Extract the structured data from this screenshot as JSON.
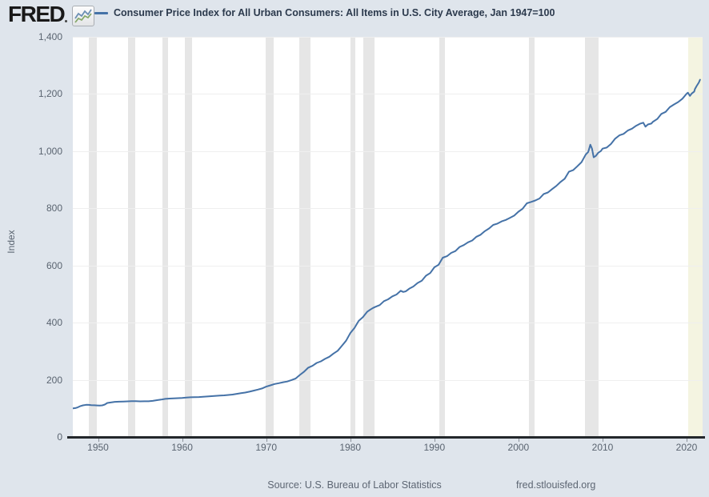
{
  "header": {
    "logo_text": "FRED",
    "legend_label": "Consumer Price Index for All Urban Consumers: All Items in U.S. City Average, Jan 1947=100"
  },
  "footer": {
    "source": "Source: U.S. Bureau of Labor Statistics",
    "site": "fred.stlouisfed.org"
  },
  "colors": {
    "page_background": "#dfe5ec",
    "plot_background": "#ffffff",
    "line": "#4572a7",
    "recession_band": "#e6e6e6",
    "undated_recession_band": "#f4f4e1",
    "gridline": "#efefef",
    "axis_line": "#23272b",
    "tick_text": "#5a6470"
  },
  "chart_data": {
    "type": "line",
    "title": "Consumer Price Index for All Urban Consumers: All Items in U.S. City Average, Jan 1947=100",
    "xlabel": "",
    "ylabel": "Index",
    "xlim": [
      1947,
      2021.9
    ],
    "ylim": [
      0,
      1400
    ],
    "grid": "horizontal",
    "legend_position": "top",
    "y_ticks": [
      {
        "value": 0,
        "label": "0"
      },
      {
        "value": 200,
        "label": "200"
      },
      {
        "value": 400,
        "label": "400"
      },
      {
        "value": 600,
        "label": "600"
      },
      {
        "value": 800,
        "label": "800"
      },
      {
        "value": 1000,
        "label": "1,000"
      },
      {
        "value": 1200,
        "label": "1,200"
      },
      {
        "value": 1400,
        "label": "1,400"
      }
    ],
    "x_ticks": [
      {
        "value": 1950,
        "label": "1950"
      },
      {
        "value": 1960,
        "label": "1960"
      },
      {
        "value": 1970,
        "label": "1970"
      },
      {
        "value": 1980,
        "label": "1980"
      },
      {
        "value": 1990,
        "label": "1990"
      },
      {
        "value": 2000,
        "label": "2000"
      },
      {
        "value": 2010,
        "label": "2010"
      },
      {
        "value": 2020,
        "label": "2020"
      }
    ],
    "recession_bands": [
      [
        1948.92,
        1949.83
      ],
      [
        1953.58,
        1954.42
      ],
      [
        1957.67,
        1958.33
      ],
      [
        1960.33,
        1961.17
      ],
      [
        1969.92,
        1970.92
      ],
      [
        1973.92,
        1975.25
      ],
      [
        1980.05,
        1980.58
      ],
      [
        1981.58,
        1982.92
      ],
      [
        1990.58,
        1991.25
      ],
      [
        2001.25,
        2001.92
      ],
      [
        2007.92,
        2009.5
      ]
    ],
    "undated_recession_band": [
      2020.17,
      2021.9
    ],
    "series": [
      {
        "name": "Consumer Price Index for All Urban Consumers: All Items in U.S. City Average, Jan 1947=100",
        "color": "#4572a7",
        "points": [
          [
            1947.0,
            100
          ],
          [
            1947.3,
            101
          ],
          [
            1947.6,
            104
          ],
          [
            1947.9,
            108
          ],
          [
            1948.2,
            110.5
          ],
          [
            1948.6,
            112.5
          ],
          [
            1948.9,
            112.3
          ],
          [
            1949.2,
            111.5
          ],
          [
            1949.6,
            111.0
          ],
          [
            1949.9,
            110.3
          ],
          [
            1950.2,
            109.8
          ],
          [
            1950.5,
            110.5
          ],
          [
            1950.8,
            113.5
          ],
          [
            1951.1,
            119.0
          ],
          [
            1951.5,
            120.8
          ],
          [
            1952.0,
            122.8
          ],
          [
            1952.5,
            123.5
          ],
          [
            1953.0,
            124.0
          ],
          [
            1953.5,
            124.5
          ],
          [
            1954.0,
            125.4
          ],
          [
            1954.5,
            125.2
          ],
          [
            1955.0,
            124.6
          ],
          [
            1955.5,
            124.8
          ],
          [
            1956.0,
            124.9
          ],
          [
            1956.5,
            126.3
          ],
          [
            1957.0,
            128.8
          ],
          [
            1957.5,
            130.7
          ],
          [
            1958.0,
            133.3
          ],
          [
            1958.5,
            134.5
          ],
          [
            1959.0,
            135.0
          ],
          [
            1959.5,
            135.9
          ],
          [
            1960.0,
            136.7
          ],
          [
            1960.5,
            138.0
          ],
          [
            1961.0,
            138.9
          ],
          [
            1961.5,
            139.4
          ],
          [
            1962.0,
            139.8
          ],
          [
            1962.5,
            140.9
          ],
          [
            1963.0,
            141.7
          ],
          [
            1963.5,
            142.9
          ],
          [
            1964.0,
            144.0
          ],
          [
            1964.5,
            144.9
          ],
          [
            1965.0,
            145.6
          ],
          [
            1965.5,
            147.0
          ],
          [
            1966.0,
            148.4
          ],
          [
            1966.5,
            150.9
          ],
          [
            1967.0,
            153.2
          ],
          [
            1967.5,
            155.4
          ],
          [
            1968.0,
            158.6
          ],
          [
            1968.5,
            162.2
          ],
          [
            1969.0,
            165.7
          ],
          [
            1969.5,
            169.8
          ],
          [
            1970.0,
            176.2
          ],
          [
            1970.5,
            180.5
          ],
          [
            1971.0,
            185.5
          ],
          [
            1971.5,
            188.3
          ],
          [
            1972.0,
            191.5
          ],
          [
            1972.5,
            194.1
          ],
          [
            1973.0,
            199.0
          ],
          [
            1973.5,
            204.3
          ],
          [
            1974.0,
            217.0
          ],
          [
            1974.5,
            228.5
          ],
          [
            1975.0,
            242.6
          ],
          [
            1975.5,
            248.9
          ],
          [
            1976.0,
            258.9
          ],
          [
            1976.5,
            264.5
          ],
          [
            1977.0,
            273.3
          ],
          [
            1977.5,
            280.6
          ],
          [
            1978.0,
            291.8
          ],
          [
            1978.5,
            301.5
          ],
          [
            1979.0,
            319.0
          ],
          [
            1979.5,
            336.9
          ],
          [
            1980.0,
            363.2
          ],
          [
            1980.5,
            381.5
          ],
          [
            1981.0,
            405.9
          ],
          [
            1981.5,
            419.3
          ],
          [
            1982.0,
            438.0
          ],
          [
            1982.4,
            446.0
          ],
          [
            1982.7,
            451.5
          ],
          [
            1983.0,
            455.7
          ],
          [
            1983.5,
            461.5
          ],
          [
            1984.0,
            475.3
          ],
          [
            1984.5,
            481.5
          ],
          [
            1985.0,
            492.1
          ],
          [
            1985.5,
            498.5
          ],
          [
            1986.0,
            511.6
          ],
          [
            1986.3,
            507.5
          ],
          [
            1986.6,
            509.5
          ],
          [
            1987.0,
            518.6
          ],
          [
            1987.5,
            526.5
          ],
          [
            1988.0,
            538.6
          ],
          [
            1988.5,
            546.5
          ],
          [
            1989.0,
            564.2
          ],
          [
            1989.5,
            573.5
          ],
          [
            1990.0,
            593.6
          ],
          [
            1990.5,
            602.5
          ],
          [
            1991.0,
            627.1
          ],
          [
            1991.5,
            632.5
          ],
          [
            1992.0,
            643.9
          ],
          [
            1992.5,
            650.5
          ],
          [
            1993.0,
            664.8
          ],
          [
            1993.5,
            671.5
          ],
          [
            1994.0,
            681.1
          ],
          [
            1994.5,
            687.5
          ],
          [
            1995.0,
            700.6
          ],
          [
            1995.5,
            707.5
          ],
          [
            1996.0,
            720.2
          ],
          [
            1996.5,
            729.5
          ],
          [
            1997.0,
            742.1
          ],
          [
            1997.5,
            746.5
          ],
          [
            1998.0,
            754.2
          ],
          [
            1998.5,
            759.5
          ],
          [
            1999.0,
            766.8
          ],
          [
            1999.5,
            774.5
          ],
          [
            2000.0,
            788.1
          ],
          [
            2000.5,
            798.5
          ],
          [
            2001.0,
            817.5
          ],
          [
            2001.5,
            822.5
          ],
          [
            2002.0,
            827.3
          ],
          [
            2002.5,
            834.5
          ],
          [
            2003.0,
            850.1
          ],
          [
            2003.5,
            855.5
          ],
          [
            2004.0,
            867.3
          ],
          [
            2004.5,
            878.5
          ],
          [
            2005.0,
            892.0
          ],
          [
            2005.5,
            903.5
          ],
          [
            2006.0,
            927.8
          ],
          [
            2006.5,
            933.5
          ],
          [
            2007.0,
            947.1
          ],
          [
            2007.5,
            961.5
          ],
          [
            2008.0,
            987.8
          ],
          [
            2008.3,
            997.5
          ],
          [
            2008.55,
            1022.5
          ],
          [
            2008.75,
            1008.5
          ],
          [
            2008.95,
            978.5
          ],
          [
            2009.2,
            983.5
          ],
          [
            2009.5,
            994.5
          ],
          [
            2009.8,
            1000.5
          ],
          [
            2010.0,
            1008.8
          ],
          [
            2010.5,
            1012.5
          ],
          [
            2011.0,
            1025.2
          ],
          [
            2011.5,
            1043.5
          ],
          [
            2012.0,
            1055.2
          ],
          [
            2012.5,
            1060.5
          ],
          [
            2013.0,
            1072.1
          ],
          [
            2013.5,
            1078.5
          ],
          [
            2014.0,
            1089.0
          ],
          [
            2014.5,
            1096.5
          ],
          [
            2014.85,
            1099.5
          ],
          [
            2015.1,
            1085.5
          ],
          [
            2015.4,
            1093.5
          ],
          [
            2015.8,
            1096.5
          ],
          [
            2016.0,
            1102.9
          ],
          [
            2016.5,
            1112.5
          ],
          [
            2017.0,
            1130.5
          ],
          [
            2017.5,
            1137.5
          ],
          [
            2018.0,
            1153.9
          ],
          [
            2018.5,
            1163.5
          ],
          [
            2019.0,
            1171.8
          ],
          [
            2019.5,
            1183.5
          ],
          [
            2020.0,
            1201.0
          ],
          [
            2020.15,
            1204.5
          ],
          [
            2020.4,
            1193.5
          ],
          [
            2020.6,
            1201.5
          ],
          [
            2020.9,
            1208.5
          ],
          [
            2021.0,
            1217.8
          ],
          [
            2021.2,
            1228.0
          ],
          [
            2021.45,
            1240.0
          ],
          [
            2021.6,
            1250.0
          ]
        ]
      }
    ]
  }
}
